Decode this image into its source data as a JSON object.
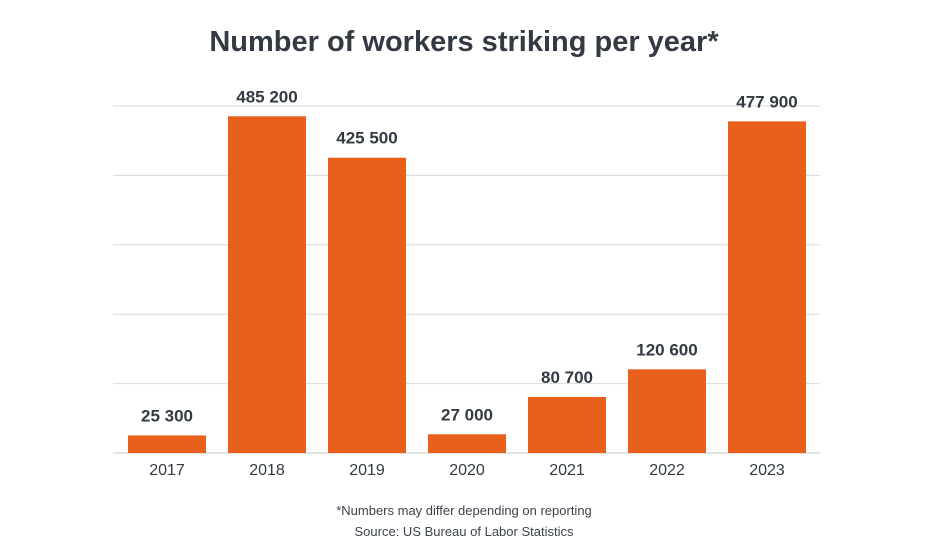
{
  "chart_data": {
    "type": "bar",
    "title": "Number of workers striking per year*",
    "categories": [
      "2017",
      "2018",
      "2019",
      "2020",
      "2021",
      "2022",
      "2023"
    ],
    "values": [
      25300,
      485200,
      425500,
      27000,
      80700,
      120600,
      477900
    ],
    "value_labels": [
      "25 300",
      "485 200",
      "425 500",
      "27 000",
      "80 700",
      "120 600",
      "477 900"
    ],
    "xlabel": "",
    "ylabel": "",
    "ylim": [
      0,
      500000
    ],
    "y_grid_step": 100000,
    "y_tick_labels_shown": false,
    "grid": true,
    "legend": "none"
  },
  "colors": {
    "bar": "#e8601c",
    "grid": "#dadada",
    "text": "#333a44"
  },
  "footnotes": {
    "note": "*Numbers may differ depending on reporting",
    "source": "Source: US Bureau of Labor Statistics"
  }
}
